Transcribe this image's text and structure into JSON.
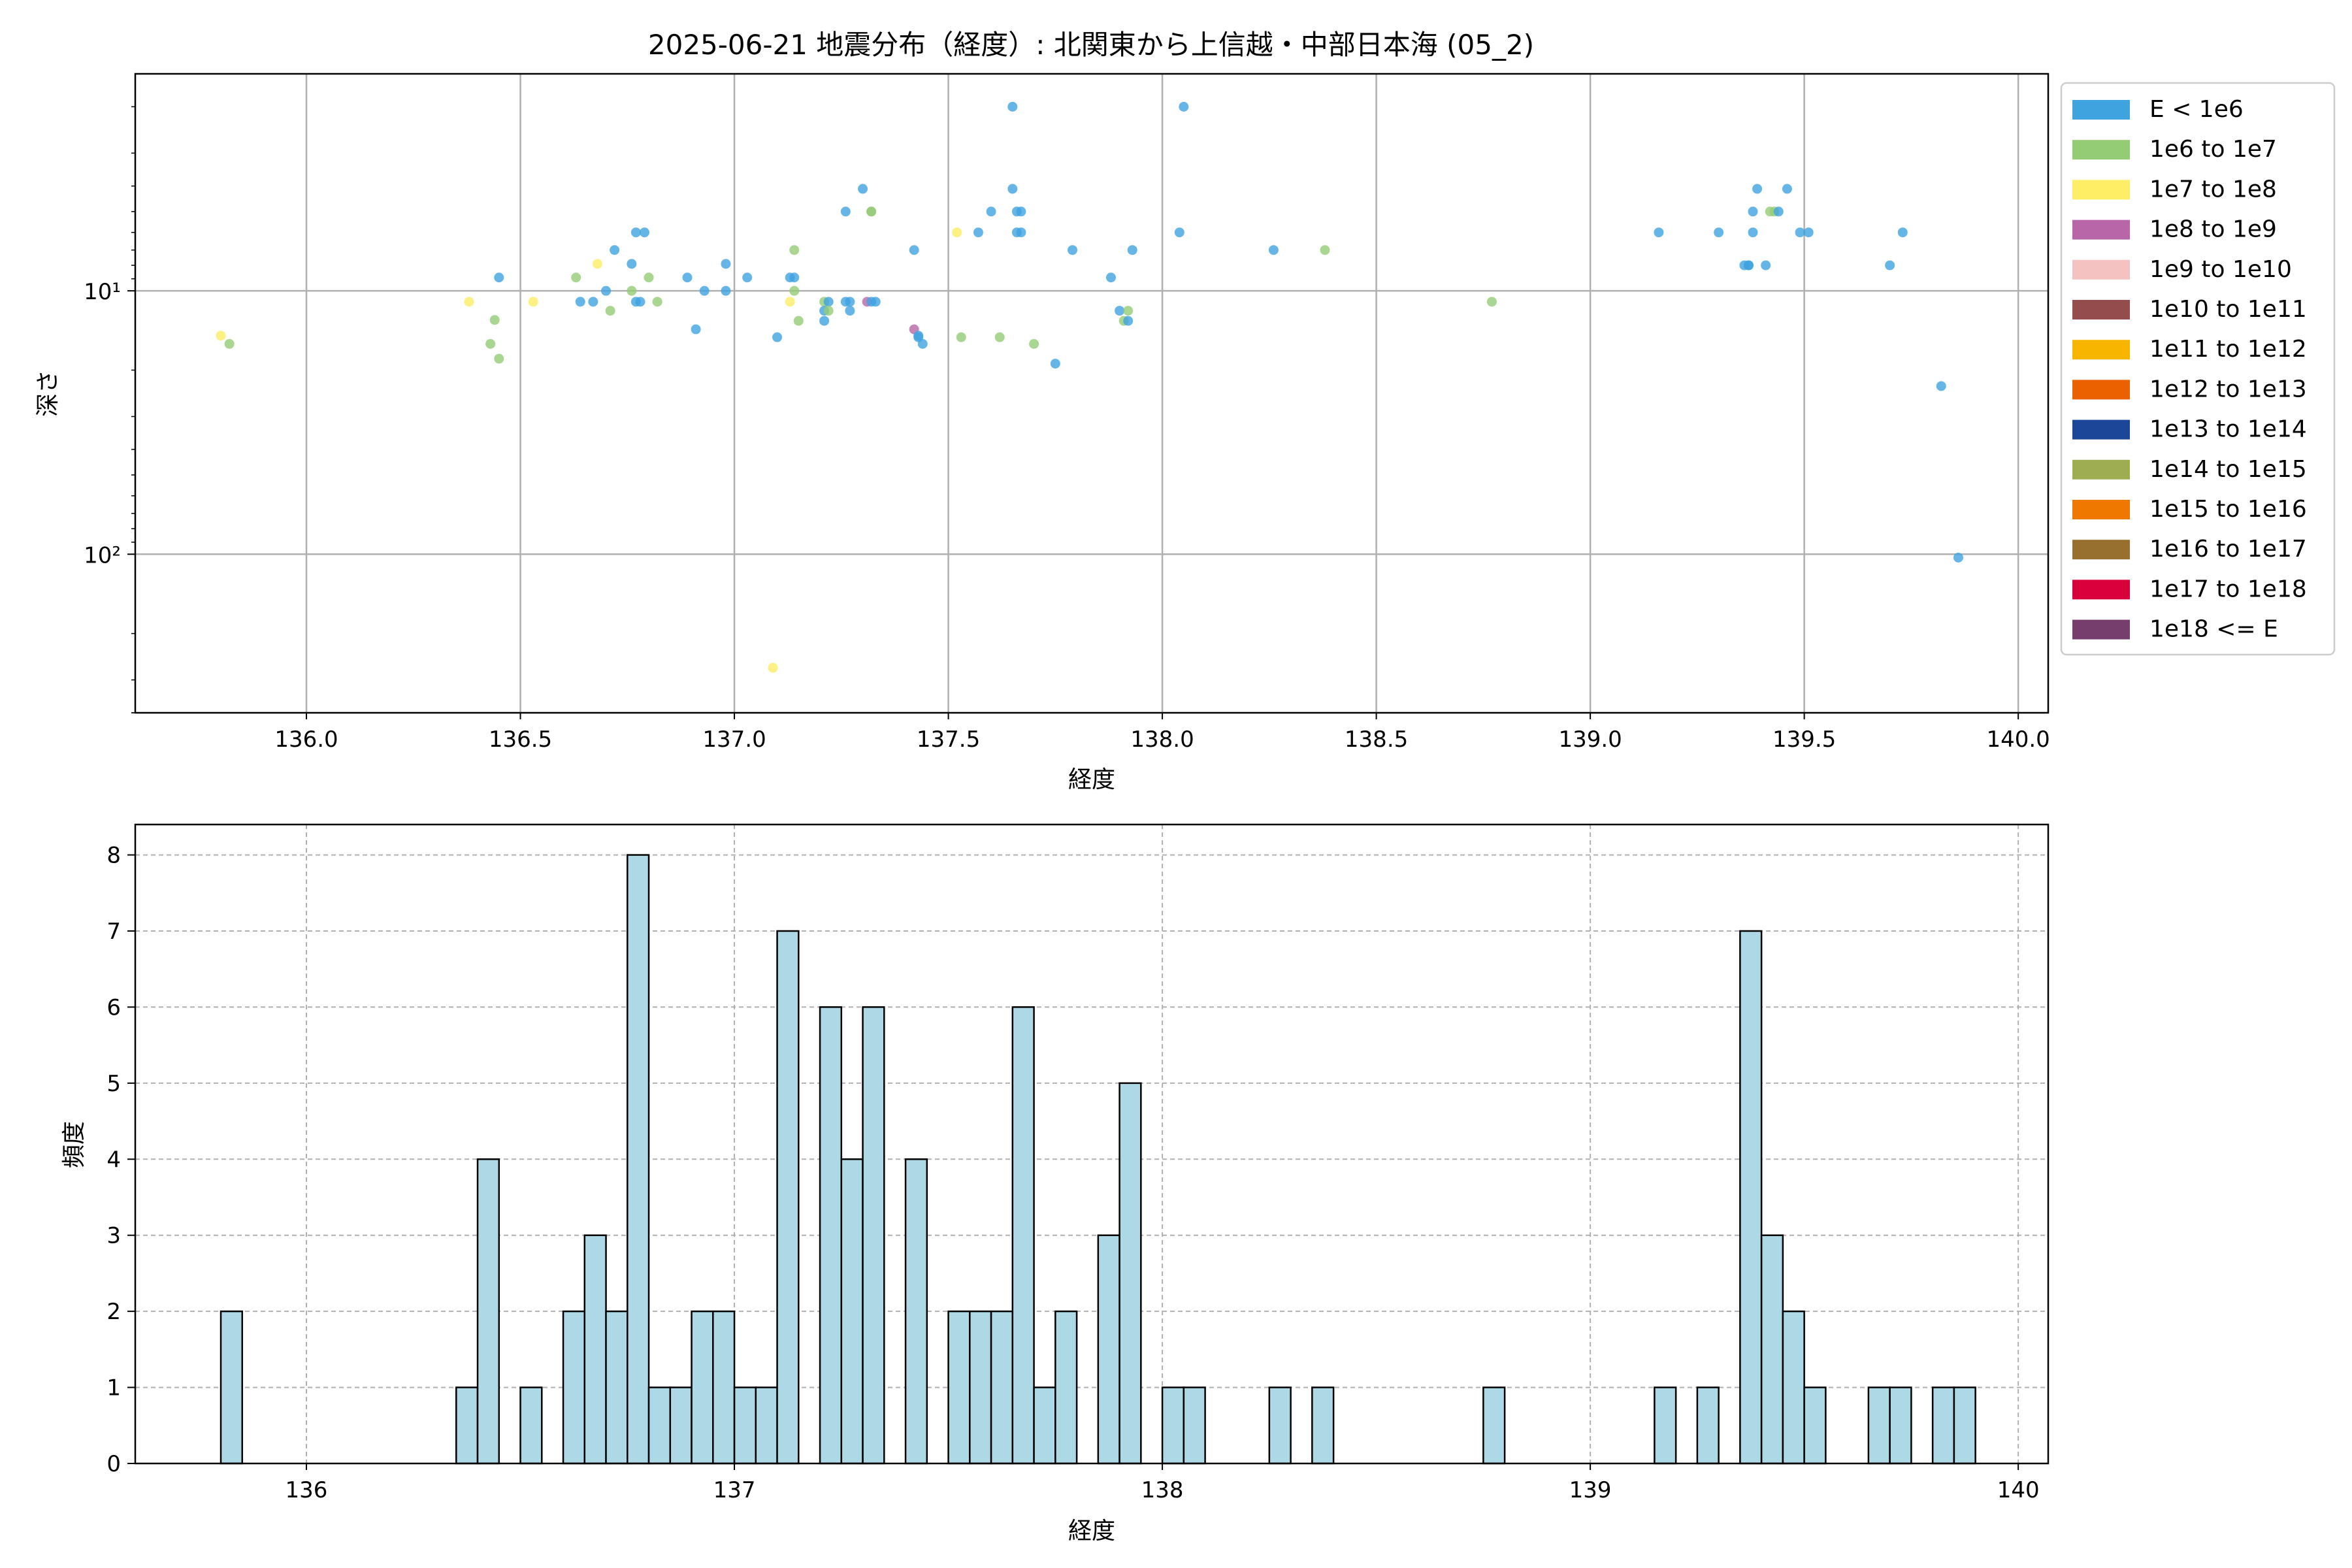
{
  "figure": {
    "title": "2025-06-21 地震分布（経度）: 北関東から上信越・中部日本海 (05_2)"
  },
  "chart_data": [
    {
      "type": "scatter",
      "xlabel": "経度",
      "ylabel": "深さ",
      "xlim": [
        135.6,
        140.07
      ],
      "ylim_log_inverted": [
        1.5,
        400
      ],
      "y_scale": "log",
      "y_inverted": true,
      "grid": true,
      "x_ticks": [
        136.0,
        136.5,
        137.0,
        137.5,
        138.0,
        138.5,
        139.0,
        139.5,
        140.0
      ],
      "x_tick_labels": [
        "136.0",
        "136.5",
        "137.0",
        "137.5",
        "138.0",
        "138.5",
        "139.0",
        "139.5",
        "140.0"
      ],
      "y_ticks": [
        10,
        100
      ],
      "y_tick_labels": [
        "10¹",
        "10²"
      ],
      "legend_position": "outside-right",
      "legend": [
        {
          "label": "E < 1e6",
          "color": "#3fa3e0"
        },
        {
          "label": "1e6 to 1e7",
          "color": "#94cc76"
        },
        {
          "label": "1e7 to 1e8",
          "color": "#fdee65"
        },
        {
          "label": "1e8 to 1e9",
          "color": "#b866a8"
        },
        {
          "label": "1e9 to 1e10",
          "color": "#f4c2c0"
        },
        {
          "label": "1e10 to 1e11",
          "color": "#944d4c"
        },
        {
          "label": "1e11 to 1e12",
          "color": "#f8b500"
        },
        {
          "label": "1e12 to 1e13",
          "color": "#ea6100"
        },
        {
          "label": "1e13 to 1e14",
          "color": "#1c4798"
        },
        {
          "label": "1e14 to 1e15",
          "color": "#9fad52"
        },
        {
          "label": "1e15 to 1e16",
          "color": "#ee7800"
        },
        {
          "label": "1e16 to 1e17",
          "color": "#976f2e"
        },
        {
          "label": "1e17 to 1e18",
          "color": "#d7003a"
        },
        {
          "label": "1e18 <= E",
          "color": "#763e6d"
        }
      ],
      "points": [
        [
          135.8,
          14.8,
          2
        ],
        [
          135.82,
          15.9,
          1
        ],
        [
          136.38,
          11.0,
          2
        ],
        [
          136.43,
          15.9,
          1
        ],
        [
          136.44,
          12.9,
          1
        ],
        [
          136.45,
          18.1,
          1
        ],
        [
          136.45,
          8.9,
          0
        ],
        [
          136.53,
          11.0,
          2
        ],
        [
          136.63,
          8.9,
          1
        ],
        [
          136.64,
          11.0,
          0
        ],
        [
          136.67,
          11.0,
          0
        ],
        [
          136.68,
          7.9,
          2
        ],
        [
          136.7,
          10.0,
          0
        ],
        [
          136.71,
          11.9,
          1
        ],
        [
          136.72,
          7.0,
          0
        ],
        [
          136.76,
          10.0,
          1
        ],
        [
          136.76,
          7.9,
          0
        ],
        [
          136.77,
          6.0,
          0
        ],
        [
          136.77,
          11.0,
          0
        ],
        [
          136.78,
          11.0,
          0
        ],
        [
          136.79,
          6.0,
          0
        ],
        [
          136.8,
          8.9,
          1
        ],
        [
          136.82,
          11.0,
          1
        ],
        [
          136.89,
          8.9,
          0
        ],
        [
          136.91,
          14.0,
          0
        ],
        [
          136.93,
          10.0,
          0
        ],
        [
          136.98,
          7.9,
          0
        ],
        [
          136.98,
          10.0,
          0
        ],
        [
          137.03,
          8.9,
          0
        ],
        [
          137.09,
          270,
          2
        ],
        [
          137.1,
          15.0,
          0
        ],
        [
          137.13,
          8.9,
          0
        ],
        [
          137.13,
          11.0,
          2
        ],
        [
          137.14,
          8.9,
          0
        ],
        [
          137.14,
          10.0,
          1
        ],
        [
          137.14,
          7.0,
          1
        ],
        [
          137.15,
          13.0,
          1
        ],
        [
          137.21,
          11.0,
          1
        ],
        [
          137.21,
          13.0,
          0
        ],
        [
          137.21,
          11.9,
          0
        ],
        [
          137.22,
          11.0,
          0
        ],
        [
          137.22,
          11.9,
          1
        ],
        [
          137.26,
          5.0,
          0
        ],
        [
          137.26,
          11.0,
          0
        ],
        [
          137.27,
          11.9,
          0
        ],
        [
          137.27,
          11.0,
          0
        ],
        [
          137.3,
          4.1,
          0
        ],
        [
          137.31,
          11.0,
          3
        ],
        [
          137.32,
          5.0,
          1
        ],
        [
          137.32,
          5.0,
          1
        ],
        [
          137.32,
          11.0,
          0
        ],
        [
          137.33,
          11.0,
          0
        ],
        [
          137.42,
          7.0,
          0
        ],
        [
          137.42,
          14.0,
          3
        ],
        [
          137.43,
          14.8,
          0
        ],
        [
          137.43,
          15.0,
          0
        ],
        [
          137.44,
          15.9,
          0
        ],
        [
          137.52,
          6.0,
          2
        ],
        [
          137.53,
          15.0,
          1
        ],
        [
          137.57,
          6.0,
          0
        ],
        [
          137.6,
          5.0,
          0
        ],
        [
          137.62,
          15.0,
          1
        ],
        [
          137.65,
          2.0,
          0
        ],
        [
          137.65,
          4.1,
          0
        ],
        [
          137.66,
          5.0,
          0
        ],
        [
          137.66,
          6.0,
          0
        ],
        [
          137.67,
          5.0,
          0
        ],
        [
          137.67,
          6.0,
          0
        ],
        [
          137.7,
          15.9,
          1
        ],
        [
          137.75,
          18.9,
          0
        ],
        [
          137.79,
          7.0,
          0
        ],
        [
          137.88,
          8.9,
          0
        ],
        [
          137.9,
          11.9,
          0
        ],
        [
          137.91,
          13.0,
          1
        ],
        [
          137.92,
          13.0,
          0
        ],
        [
          137.92,
          11.9,
          1
        ],
        [
          137.93,
          7.0,
          0
        ],
        [
          138.04,
          6.0,
          0
        ],
        [
          138.05,
          2.0,
          0
        ],
        [
          138.26,
          7.0,
          0
        ],
        [
          138.38,
          7.0,
          1
        ],
        [
          138.77,
          11.0,
          1
        ],
        [
          139.16,
          6.0,
          0
        ],
        [
          139.3,
          6.0,
          0
        ],
        [
          139.36,
          8.0,
          0
        ],
        [
          139.37,
          8.0,
          0
        ],
        [
          139.37,
          8.0,
          0
        ],
        [
          139.38,
          5.0,
          0
        ],
        [
          139.38,
          6.0,
          0
        ],
        [
          139.39,
          4.1,
          0
        ],
        [
          139.41,
          8.0,
          0
        ],
        [
          139.42,
          5.0,
          1
        ],
        [
          139.43,
          5.0,
          1
        ],
        [
          139.44,
          5.0,
          0
        ],
        [
          139.46,
          4.1,
          0
        ],
        [
          139.49,
          6.0,
          0
        ],
        [
          139.51,
          6.0,
          0
        ],
        [
          139.7,
          8.0,
          0
        ],
        [
          139.73,
          6.0,
          0
        ],
        [
          139.82,
          23.0,
          0
        ],
        [
          139.86,
          103,
          0
        ]
      ]
    },
    {
      "type": "bar",
      "xlabel": "経度",
      "ylabel": "頻度",
      "xlim": [
        135.6,
        140.07
      ],
      "ylim": [
        0,
        8.4
      ],
      "grid": true,
      "x_ticks": [
        136,
        137,
        138,
        139,
        140
      ],
      "x_tick_labels": [
        "136",
        "137",
        "138",
        "139",
        "140"
      ],
      "y_ticks": [
        0,
        1,
        2,
        3,
        4,
        5,
        6,
        7,
        8
      ],
      "y_tick_labels": [
        "0",
        "1",
        "2",
        "3",
        "4",
        "5",
        "6",
        "7",
        "8"
      ],
      "bin_start": 135.8,
      "bin_width": 0.05,
      "values": [
        2,
        0,
        0,
        0,
        0,
        0,
        0,
        0,
        0,
        0,
        0,
        1,
        4,
        0,
        1,
        0,
        2,
        3,
        2,
        8,
        1,
        1,
        2,
        2,
        1,
        1,
        7,
        0,
        6,
        4,
        6,
        0,
        4,
        0,
        2,
        2,
        2,
        6,
        1,
        2,
        0,
        3,
        5,
        0,
        1,
        1,
        0,
        0,
        0,
        1,
        0,
        1,
        0,
        0,
        0,
        0,
        0,
        0,
        0,
        1,
        0,
        0,
        0,
        0,
        0,
        0,
        0,
        1,
        0,
        1,
        0,
        7,
        3,
        2,
        1,
        0,
        0,
        1,
        1,
        0,
        1,
        1
      ]
    }
  ],
  "style": {
    "hist_fill": "#add8e6",
    "hist_edge": "#000000",
    "grid_color": "#b0b0b0",
    "marker_alpha": 0.8
  }
}
